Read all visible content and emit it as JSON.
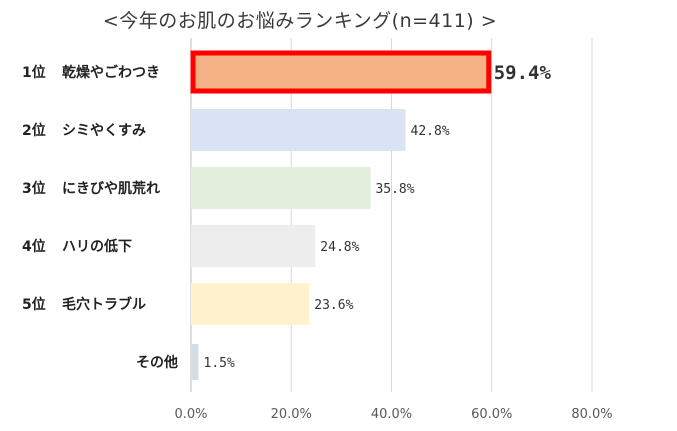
{
  "title": "<今年のお肌のお悩みランキング(n=411) >",
  "chart_data": {
    "type": "bar",
    "orientation": "horizontal",
    "title": "<今年のお肌のお悩みランキング(n=411) >",
    "xlabel": "",
    "ylabel": "",
    "xlim": [
      0,
      80
    ],
    "grid": true,
    "categories": [
      {
        "rank": "1位",
        "name": "乾燥やごわつき"
      },
      {
        "rank": "2位",
        "name": "シミやくすみ"
      },
      {
        "rank": "3位",
        "name": "にきびや肌荒れ"
      },
      {
        "rank": "4位",
        "name": "ハリの低下"
      },
      {
        "rank": "5位",
        "name": "毛穴トラブル"
      },
      {
        "rank": "",
        "name": "その他"
      }
    ],
    "values": [
      59.4,
      42.8,
      35.8,
      24.8,
      23.6,
      1.5
    ],
    "value_labels": [
      "59.4%",
      "42.8%",
      "35.8%",
      "24.8%",
      "23.6%",
      "1.5%"
    ],
    "tick_labels": [
      "0.0%",
      "20.0%",
      "40.0%",
      "60.0%",
      "80.0%"
    ],
    "ticks": [
      0,
      20,
      40,
      60,
      80
    ],
    "colors": [
      "#F4B183",
      "#DAE3F3",
      "#E2EFDA",
      "#EDEDED",
      "#FFF2CC",
      "#D6DCE4"
    ],
    "highlight_color": "#FF0000",
    "grid_color": "#D9D9D9"
  }
}
